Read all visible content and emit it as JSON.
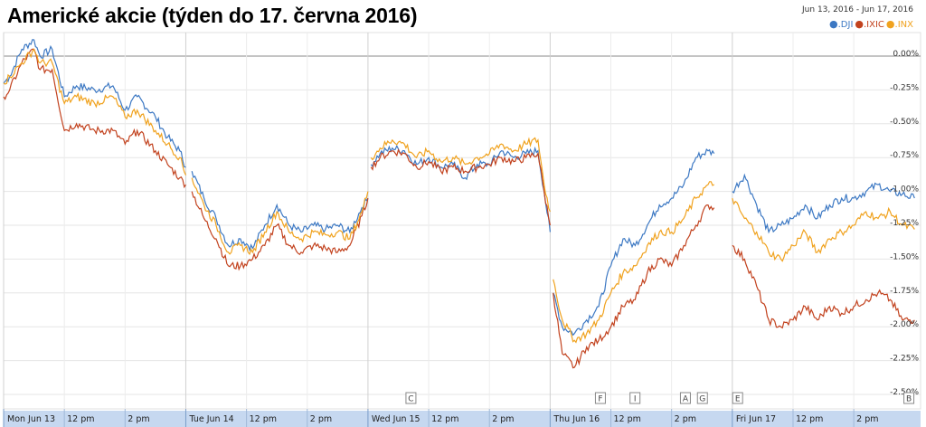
{
  "title": "Americké akcie (týden do 17. června 2016)",
  "date_range": "Jun 13, 2016  -  Jun 17, 2016",
  "colors": {
    "DJI": "#3c78c3",
    "IXIC": "#c2421e",
    "INX": "#f0a21e",
    "zero_line": "#888888",
    "grid": "#e6e6e6",
    "axis_band": "#c6d8f0"
  },
  "chart_data": {
    "type": "line",
    "title": "Americké akcie (týden do 17. června 2016)",
    "ylim": [
      -2.5,
      0.1
    ],
    "y_ticks": [
      0.0,
      -0.25,
      -0.5,
      -0.75,
      -1.0,
      -1.25,
      -1.5,
      -1.75,
      -2.0,
      -2.25,
      -2.5
    ],
    "y_tick_labels": [
      "0.00%",
      "-0.25%",
      "-0.50%",
      "-0.75%",
      "-1.00%",
      "-1.25%",
      "-1.50%",
      "-1.75%",
      "-2.00%",
      "-2.25%",
      "-2.50%"
    ],
    "x_ticks": [
      0,
      1,
      2,
      3,
      4,
      5,
      6,
      7,
      8,
      9,
      10,
      11,
      12,
      13,
      14
    ],
    "x_tick_labels": [
      "Mon Jun 13",
      "12 pm",
      "2 pm",
      "Tue Jun 14",
      "12 pm",
      "2 pm",
      "Wed Jun 15",
      "12 pm",
      "2 pm",
      "Thu Jun 16",
      "12 pm",
      "2 pm",
      "Fri Jun 17",
      "12 pm",
      "2 pm"
    ],
    "x_tick_major": [
      true,
      false,
      false,
      true,
      false,
      false,
      true,
      false,
      false,
      true,
      false,
      false,
      true,
      false,
      false
    ],
    "x_range": [
      0,
      15.1
    ],
    "grid": true,
    "legend": "top-right",
    "series": [
      {
        "name": ".DJI",
        "color_key": "DJI",
        "values": [
          [
            0,
            -0.2
          ],
          [
            0.1,
            -0.15
          ],
          [
            0.3,
            0.05
          ],
          [
            0.5,
            0.12
          ],
          [
            0.6,
            0.0
          ],
          [
            0.8,
            0.05
          ],
          [
            1.0,
            -0.3
          ],
          [
            1.2,
            -0.22
          ],
          [
            1.5,
            -0.25
          ],
          [
            1.8,
            -0.22
          ],
          [
            2.0,
            -0.4
          ],
          [
            2.2,
            -0.3
          ],
          [
            2.5,
            -0.45
          ],
          [
            2.7,
            -0.6
          ],
          [
            2.9,
            -0.7
          ],
          [
            3.0,
            -0.82
          ],
          [
            3.1,
            -0.85
          ],
          [
            3.3,
            -1.05
          ],
          [
            3.5,
            -1.2
          ],
          [
            3.7,
            -1.4
          ],
          [
            3.9,
            -1.35
          ],
          [
            4.1,
            -1.42
          ],
          [
            4.3,
            -1.25
          ],
          [
            4.5,
            -1.1
          ],
          [
            4.7,
            -1.25
          ],
          [
            4.9,
            -1.3
          ],
          [
            5.1,
            -1.25
          ],
          [
            5.3,
            -1.28
          ],
          [
            5.5,
            -1.25
          ],
          [
            5.7,
            -1.3
          ],
          [
            5.9,
            -1.12
          ],
          [
            6.0,
            -1.05
          ],
          [
            6.05,
            -0.8
          ],
          [
            6.2,
            -0.72
          ],
          [
            6.4,
            -0.68
          ],
          [
            6.6,
            -0.7
          ],
          [
            6.8,
            -0.8
          ],
          [
            7.0,
            -0.75
          ],
          [
            7.2,
            -0.82
          ],
          [
            7.4,
            -0.8
          ],
          [
            7.6,
            -0.9
          ],
          [
            7.8,
            -0.8
          ],
          [
            8.0,
            -0.8
          ],
          [
            8.2,
            -0.7
          ],
          [
            8.4,
            -0.75
          ],
          [
            8.6,
            -0.72
          ],
          [
            8.8,
            -0.7
          ],
          [
            8.9,
            -1.0
          ],
          [
            9.0,
            -1.3
          ],
          [
            9.05,
            -1.75
          ],
          [
            9.2,
            -2.0
          ],
          [
            9.4,
            -2.05
          ],
          [
            9.6,
            -1.95
          ],
          [
            9.8,
            -1.85
          ],
          [
            10.0,
            -1.55
          ],
          [
            10.2,
            -1.35
          ],
          [
            10.4,
            -1.4
          ],
          [
            10.6,
            -1.25
          ],
          [
            10.8,
            -1.1
          ],
          [
            11.0,
            -1.05
          ],
          [
            11.2,
            -0.95
          ],
          [
            11.4,
            -0.75
          ],
          [
            11.6,
            -0.7
          ],
          [
            11.7,
            -0.72
          ],
          [
            12.0,
            -1.0
          ],
          [
            12.2,
            -0.88
          ],
          [
            12.4,
            -1.1
          ],
          [
            12.6,
            -1.3
          ],
          [
            12.8,
            -1.25
          ],
          [
            13.0,
            -1.2
          ],
          [
            13.2,
            -1.1
          ],
          [
            13.4,
            -1.2
          ],
          [
            13.6,
            -1.1
          ],
          [
            13.8,
            -1.05
          ],
          [
            14.0,
            -1.05
          ],
          [
            14.2,
            -1.0
          ],
          [
            14.4,
            -0.95
          ],
          [
            14.6,
            -1.0
          ],
          [
            14.8,
            -1.02
          ],
          [
            15.0,
            -1.05
          ]
        ]
      },
      {
        "name": ".IXIC",
        "color_key": "IXIC",
        "values": [
          [
            0,
            -0.3
          ],
          [
            0.1,
            -0.25
          ],
          [
            0.3,
            -0.05
          ],
          [
            0.5,
            0.05
          ],
          [
            0.6,
            -0.1
          ],
          [
            0.8,
            -0.1
          ],
          [
            1.0,
            -0.55
          ],
          [
            1.2,
            -0.5
          ],
          [
            1.5,
            -0.55
          ],
          [
            1.8,
            -0.55
          ],
          [
            2.0,
            -0.65
          ],
          [
            2.2,
            -0.55
          ],
          [
            2.5,
            -0.7
          ],
          [
            2.7,
            -0.8
          ],
          [
            2.9,
            -0.9
          ],
          [
            3.0,
            -0.95
          ],
          [
            3.1,
            -1.0
          ],
          [
            3.3,
            -1.2
          ],
          [
            3.5,
            -1.35
          ],
          [
            3.7,
            -1.55
          ],
          [
            3.9,
            -1.55
          ],
          [
            4.1,
            -1.5
          ],
          [
            4.3,
            -1.4
          ],
          [
            4.5,
            -1.25
          ],
          [
            4.7,
            -1.4
          ],
          [
            4.9,
            -1.45
          ],
          [
            5.1,
            -1.4
          ],
          [
            5.3,
            -1.42
          ],
          [
            5.5,
            -1.45
          ],
          [
            5.7,
            -1.4
          ],
          [
            5.9,
            -1.18
          ],
          [
            6.0,
            -1.05
          ],
          [
            6.05,
            -0.82
          ],
          [
            6.2,
            -0.75
          ],
          [
            6.4,
            -0.7
          ],
          [
            6.6,
            -0.72
          ],
          [
            6.8,
            -0.82
          ],
          [
            7.0,
            -0.78
          ],
          [
            7.2,
            -0.85
          ],
          [
            7.4,
            -0.82
          ],
          [
            7.6,
            -0.85
          ],
          [
            7.8,
            -0.82
          ],
          [
            8.0,
            -0.8
          ],
          [
            8.2,
            -0.75
          ],
          [
            8.4,
            -0.78
          ],
          [
            8.6,
            -0.75
          ],
          [
            8.8,
            -0.72
          ],
          [
            8.9,
            -1.0
          ],
          [
            9.0,
            -1.25
          ],
          [
            9.05,
            -1.75
          ],
          [
            9.2,
            -2.2
          ],
          [
            9.4,
            -2.3
          ],
          [
            9.6,
            -2.15
          ],
          [
            9.8,
            -2.1
          ],
          [
            10.0,
            -2.0
          ],
          [
            10.2,
            -1.85
          ],
          [
            10.4,
            -1.8
          ],
          [
            10.6,
            -1.6
          ],
          [
            10.8,
            -1.5
          ],
          [
            11.0,
            -1.55
          ],
          [
            11.2,
            -1.4
          ],
          [
            11.4,
            -1.25
          ],
          [
            11.6,
            -1.1
          ],
          [
            11.7,
            -1.12
          ],
          [
            12.0,
            -1.4
          ],
          [
            12.2,
            -1.5
          ],
          [
            12.4,
            -1.7
          ],
          [
            12.6,
            -1.95
          ],
          [
            12.8,
            -2.0
          ],
          [
            13.0,
            -1.95
          ],
          [
            13.2,
            -1.85
          ],
          [
            13.4,
            -1.95
          ],
          [
            13.6,
            -1.85
          ],
          [
            13.8,
            -1.9
          ],
          [
            14.0,
            -1.85
          ],
          [
            14.2,
            -1.8
          ],
          [
            14.4,
            -1.75
          ],
          [
            14.6,
            -1.8
          ],
          [
            14.8,
            -1.95
          ],
          [
            15.0,
            -1.95
          ]
        ]
      },
      {
        "name": ".INX",
        "color_key": "INX",
        "values": [
          [
            0,
            -0.2
          ],
          [
            0.1,
            -0.15
          ],
          [
            0.3,
            -0.05
          ],
          [
            0.5,
            0.05
          ],
          [
            0.6,
            -0.05
          ],
          [
            0.8,
            -0.05
          ],
          [
            1.0,
            -0.35
          ],
          [
            1.2,
            -0.3
          ],
          [
            1.5,
            -0.35
          ],
          [
            1.8,
            -0.3
          ],
          [
            2.0,
            -0.45
          ],
          [
            2.2,
            -0.4
          ],
          [
            2.5,
            -0.55
          ],
          [
            2.7,
            -0.65
          ],
          [
            2.9,
            -0.75
          ],
          [
            3.0,
            -0.88
          ],
          [
            3.1,
            -0.9
          ],
          [
            3.3,
            -1.1
          ],
          [
            3.5,
            -1.25
          ],
          [
            3.7,
            -1.45
          ],
          [
            3.9,
            -1.4
          ],
          [
            4.1,
            -1.45
          ],
          [
            4.3,
            -1.3
          ],
          [
            4.5,
            -1.15
          ],
          [
            4.7,
            -1.3
          ],
          [
            4.9,
            -1.35
          ],
          [
            5.1,
            -1.3
          ],
          [
            5.3,
            -1.32
          ],
          [
            5.5,
            -1.3
          ],
          [
            5.7,
            -1.35
          ],
          [
            5.9,
            -1.15
          ],
          [
            6.0,
            -1.0
          ],
          [
            6.05,
            -0.75
          ],
          [
            6.2,
            -0.68
          ],
          [
            6.4,
            -0.62
          ],
          [
            6.6,
            -0.65
          ],
          [
            6.8,
            -0.75
          ],
          [
            7.0,
            -0.7
          ],
          [
            7.2,
            -0.78
          ],
          [
            7.4,
            -0.75
          ],
          [
            7.6,
            -0.8
          ],
          [
            7.8,
            -0.75
          ],
          [
            8.0,
            -0.72
          ],
          [
            8.2,
            -0.65
          ],
          [
            8.4,
            -0.7
          ],
          [
            8.6,
            -0.65
          ],
          [
            8.8,
            -0.62
          ],
          [
            8.9,
            -0.95
          ],
          [
            9.0,
            -1.15
          ],
          [
            9.05,
            -1.65
          ],
          [
            9.2,
            -1.95
          ],
          [
            9.4,
            -2.1
          ],
          [
            9.6,
            -2.05
          ],
          [
            9.8,
            -1.95
          ],
          [
            10.0,
            -1.75
          ],
          [
            10.2,
            -1.6
          ],
          [
            10.4,
            -1.55
          ],
          [
            10.6,
            -1.4
          ],
          [
            10.8,
            -1.3
          ],
          [
            11.0,
            -1.3
          ],
          [
            11.2,
            -1.2
          ],
          [
            11.4,
            -1.05
          ],
          [
            11.6,
            -0.95
          ],
          [
            11.7,
            -0.95
          ],
          [
            12.0,
            -1.05
          ],
          [
            12.2,
            -1.2
          ],
          [
            12.4,
            -1.3
          ],
          [
            12.6,
            -1.45
          ],
          [
            12.8,
            -1.5
          ],
          [
            13.0,
            -1.4
          ],
          [
            13.2,
            -1.3
          ],
          [
            13.4,
            -1.45
          ],
          [
            13.6,
            -1.35
          ],
          [
            13.8,
            -1.3
          ],
          [
            14.0,
            -1.25
          ],
          [
            14.2,
            -1.15
          ],
          [
            14.4,
            -1.2
          ],
          [
            14.6,
            -1.15
          ],
          [
            14.8,
            -1.25
          ],
          [
            15.0,
            -1.28
          ]
        ]
      }
    ],
    "event_flags": [
      {
        "label": "C",
        "x": 6.7
      },
      {
        "label": "F",
        "x": 9.82
      },
      {
        "label": "I",
        "x": 10.39
      },
      {
        "label": "A",
        "x": 11.22
      },
      {
        "label": "G",
        "x": 11.5
      },
      {
        "label": "E",
        "x": 12.08
      },
      {
        "label": "B",
        "x": 14.9
      }
    ]
  },
  "legend": [
    {
      "name": ".DJI",
      "color_key": "DJI"
    },
    {
      "name": ".IXIC",
      "color_key": "IXIC"
    },
    {
      "name": ".INX",
      "color_key": "INX"
    }
  ]
}
